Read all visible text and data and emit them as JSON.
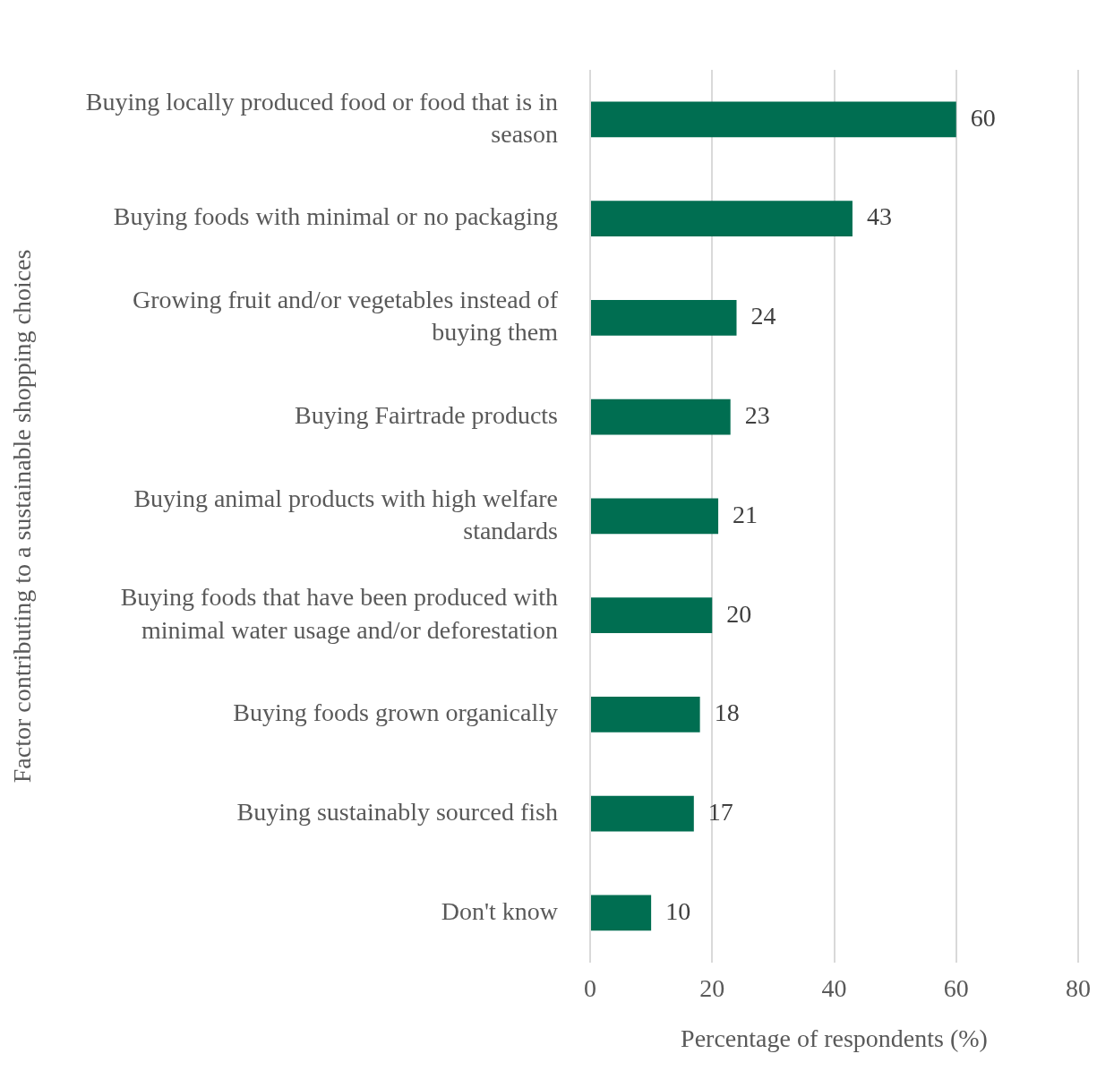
{
  "chart_data": {
    "type": "bar",
    "orientation": "horizontal",
    "categories": [
      "Buying locally produced food or food that is in season",
      "Buying foods with minimal or no packaging",
      "Growing fruit and/or vegetables instead of buying them",
      "Buying Fairtrade products",
      "Buying animal products with high welfare standards",
      "Buying foods that have been produced with minimal water usage and/or deforestation",
      "Buying foods grown organically",
      "Buying sustainably sourced fish",
      "Don't know"
    ],
    "values": [
      60,
      43,
      24,
      23,
      21,
      20,
      18,
      17,
      10
    ],
    "color": "#006e51",
    "xlim": [
      0,
      80
    ],
    "xticks": [
      0,
      20,
      40,
      60,
      80
    ],
    "grid": "x",
    "data_labels": true,
    "legend": false,
    "xlabel": "Percentage of respondents (%)",
    "ylabel": "Factor contributing to a sustainable shopping choices"
  }
}
